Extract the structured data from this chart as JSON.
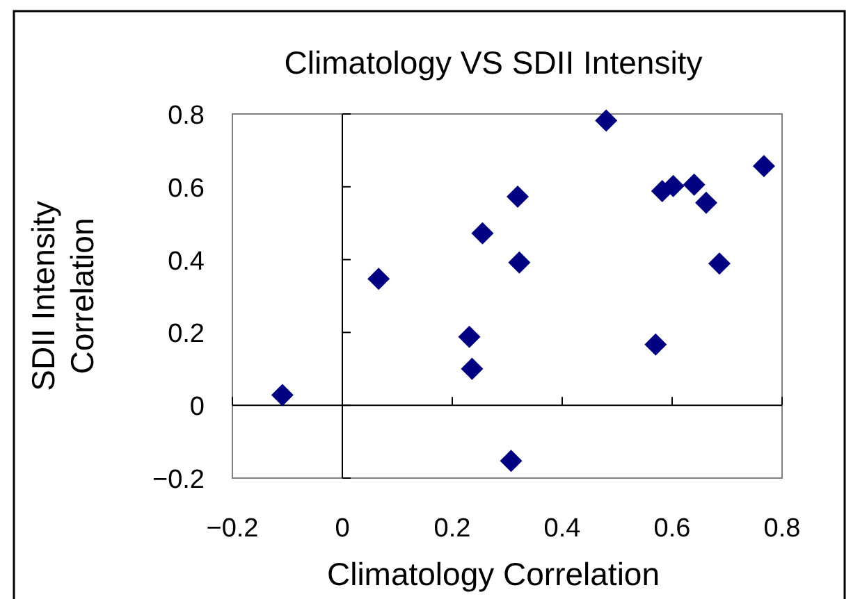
{
  "chart_data": {
    "type": "scatter",
    "title": "Climatology VS SDII Intensity",
    "xlabel": "Climatology Correlation",
    "ylabel": "SDII Intensity Correlation",
    "x": [
      -0.109,
      0.066,
      0.231,
      0.236,
      0.255,
      0.319,
      0.322,
      0.307,
      0.48,
      0.57,
      0.582,
      0.602,
      0.64,
      0.662,
      0.686,
      0.767
    ],
    "series": [
      {
        "color": "#000080",
        "values": [
          0.028,
          0.347,
          0.188,
          0.1,
          0.472,
          0.573,
          0.392,
          -0.153,
          0.782,
          0.167,
          0.588,
          0.602,
          0.606,
          0.556,
          0.389,
          0.657
        ]
      }
    ],
    "xlim": [
      -0.2,
      0.8
    ],
    "ylim": [
      -0.2,
      0.8
    ],
    "xticks": [
      -0.2,
      0,
      0.2,
      0.4,
      0.6,
      0.8
    ],
    "yticks": [
      -0.2,
      0,
      0.2,
      0.4,
      0.6,
      0.8
    ],
    "marker": "diamond"
  }
}
